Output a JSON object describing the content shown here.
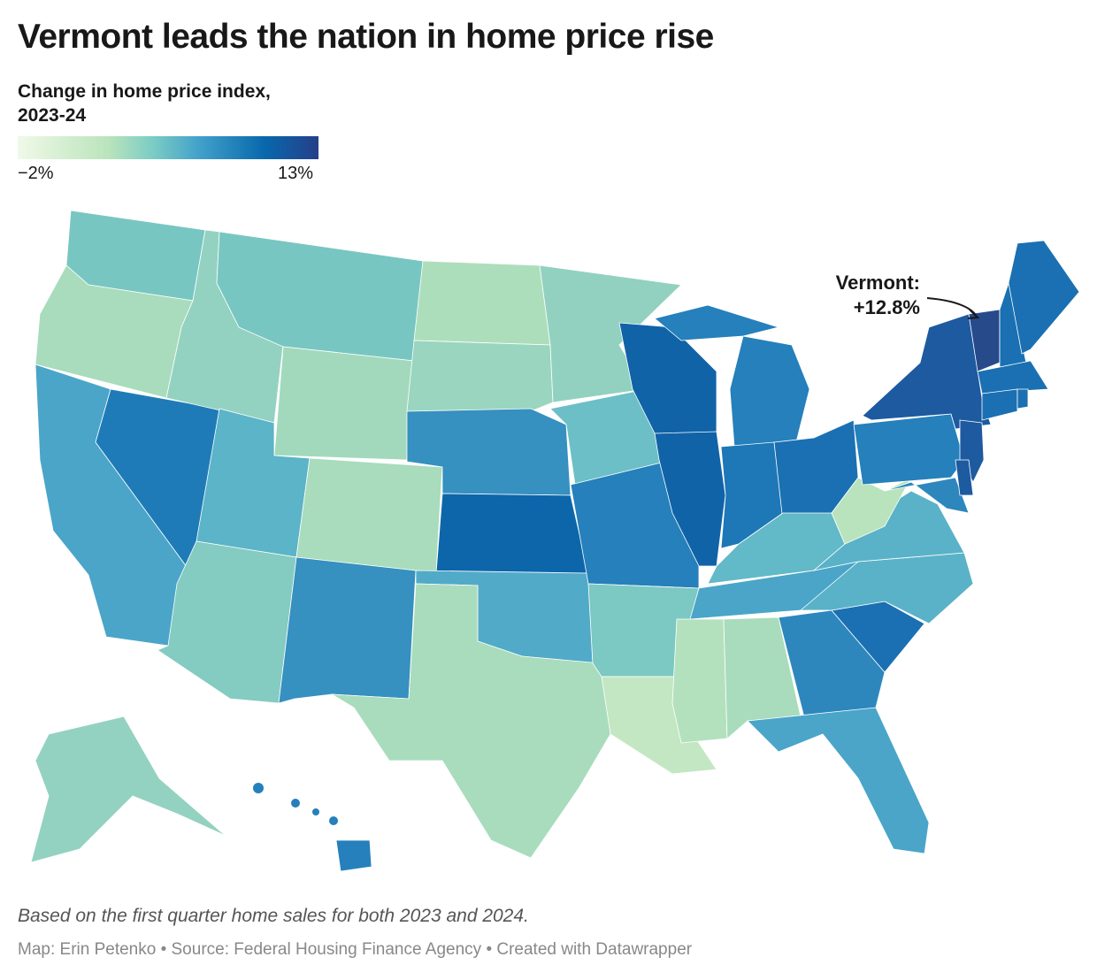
{
  "title": "Vermont leads the nation in home price rise",
  "legend": {
    "title_line1": "Change in home price index,",
    "title_line2": "2023-24",
    "min_label": "−2%",
    "max_label": "13%"
  },
  "annotation": {
    "line1": "Vermont:",
    "line2": "+12.8%"
  },
  "note": "Based on the first quarter home sales for both 2023 and 2024.",
  "credits": "Map: Erin Petenko • Source: Federal Housing Finance Agency • Created with Datawrapper",
  "state_colors": {
    "WA": "#78c6c2",
    "OR": "#a8dcbc",
    "CA": "#4aa5c9",
    "NV": "#1f7bb8",
    "ID": "#93d2c0",
    "MT": "#78c6c2",
    "WY": "#a2d9bd",
    "UT": "#5bb4c8",
    "AZ": "#84cbc1",
    "CO": "#a8dcbc",
    "NM": "#3690c0",
    "ND": "#addebc",
    "SD": "#9ad5bf",
    "NE": "#3690c0",
    "KS": "#0d66aa",
    "OK": "#52aac9",
    "TX": "#a8dcbc",
    "MN": "#92d1c0",
    "IA": "#6cbfc6",
    "MO": "#2580bb",
    "AR": "#7cc8c3",
    "LA": "#c3e7c2",
    "WI": "#1163a8",
    "IL": "#1163a8",
    "MI": "#2580bb",
    "UP": "#2580bb",
    "IN": "#1e77b6",
    "OH": "#1a70b2",
    "KY": "#62b9c7",
    "TN": "#4aa5c9",
    "MS": "#b4e1bd",
    "AL": "#a8dcbc",
    "GA": "#2d87bd",
    "FL": "#4aa5c9",
    "SC": "#1a70b2",
    "NC": "#5ab2c8",
    "VA": "#5ab2c8",
    "WV": "#b8e3bd",
    "PA": "#2580bb",
    "NY": "#1d5aa0",
    "VT": "#274a8b",
    "NH": "#1a70b2",
    "ME": "#1a70b2",
    "MA": "#1a70b2",
    "CT": "#1a70b2",
    "RI": "#1a70b2",
    "NJ": "#1d5aa0",
    "MD": "#2d87bd",
    "DE": "#1d5aa0",
    "AK": "#93d2c0",
    "HI": "#2580bb"
  }
}
